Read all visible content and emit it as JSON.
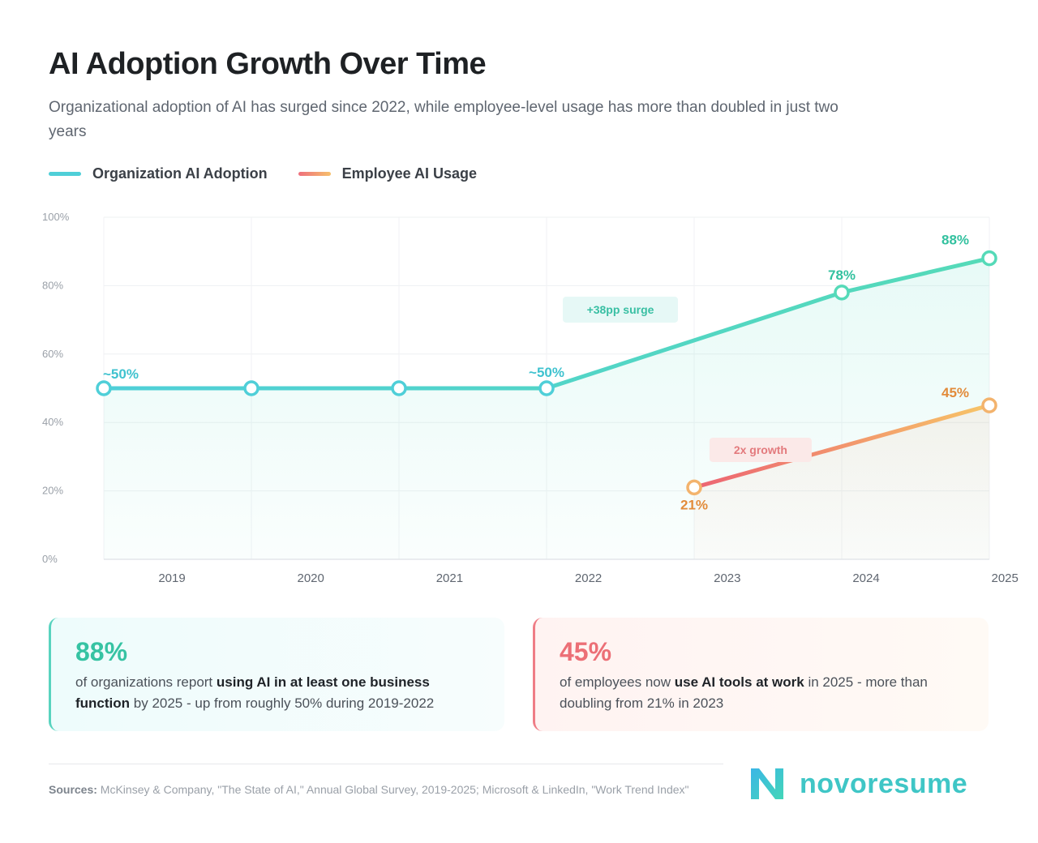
{
  "header": {
    "title": "AI Adoption Growth Over Time",
    "subtitle": "Organizational adoption of AI has surged since 2022, while employee-level usage has more than doubled in just two years"
  },
  "legend": {
    "org_label": "Organization AI Adoption",
    "emp_label": "Employee AI Usage"
  },
  "chart_data": {
    "type": "line",
    "x": [
      2019,
      2020,
      2021,
      2022,
      2023,
      2024,
      2025
    ],
    "ylim": [
      0,
      100
    ],
    "yticks": [
      "0%",
      "20%",
      "40%",
      "60%",
      "80%",
      "100%"
    ],
    "xticks": [
      "2019",
      "2020",
      "2021",
      "2022",
      "2023",
      "2024",
      "2025"
    ],
    "grid": true,
    "legend_position": "top-left",
    "series": [
      {
        "name": "Organization AI Adoption",
        "color": "#4fcfd8",
        "points": [
          {
            "x": 2019,
            "y": 50,
            "label": "~50%"
          },
          {
            "x": 2020,
            "y": 50,
            "label": ""
          },
          {
            "x": 2021,
            "y": 50,
            "label": ""
          },
          {
            "x": 2022,
            "y": 50,
            "label": "~50%"
          },
          {
            "x": 2024,
            "y": 78,
            "label": "78%"
          },
          {
            "x": 2025,
            "y": 88,
            "label": "88%"
          }
        ]
      },
      {
        "name": "Employee AI Usage",
        "color": "#ee6f7c",
        "points": [
          {
            "x": 2023,
            "y": 21,
            "label": "21%"
          },
          {
            "x": 2025,
            "y": 45,
            "label": "45%"
          }
        ]
      }
    ],
    "annotations": [
      {
        "text": "+38pp surge",
        "x": 2022.5,
        "y": 73
      },
      {
        "text": "2x growth",
        "x": 2023.45,
        "y": 32
      }
    ]
  },
  "cards": {
    "org": {
      "value": "88%",
      "pre": "of organizations report ",
      "bold": "using AI in at least one business function",
      "post": " by 2025 - up from roughly 50% during 2019-2022"
    },
    "emp": {
      "value": "45%",
      "pre": "of employees now ",
      "bold": "use AI tools at work",
      "post": " in 2025 - more than doubling from 21% in 2023"
    }
  },
  "footer": {
    "sources_label": "Sources:",
    "sources_text": " McKinsey & Company, \"The State of AI,\" Annual Global Survey, 2019-2025; Microsoft & LinkedIn, \"Work Trend Index\"",
    "brand": "novoresume"
  }
}
